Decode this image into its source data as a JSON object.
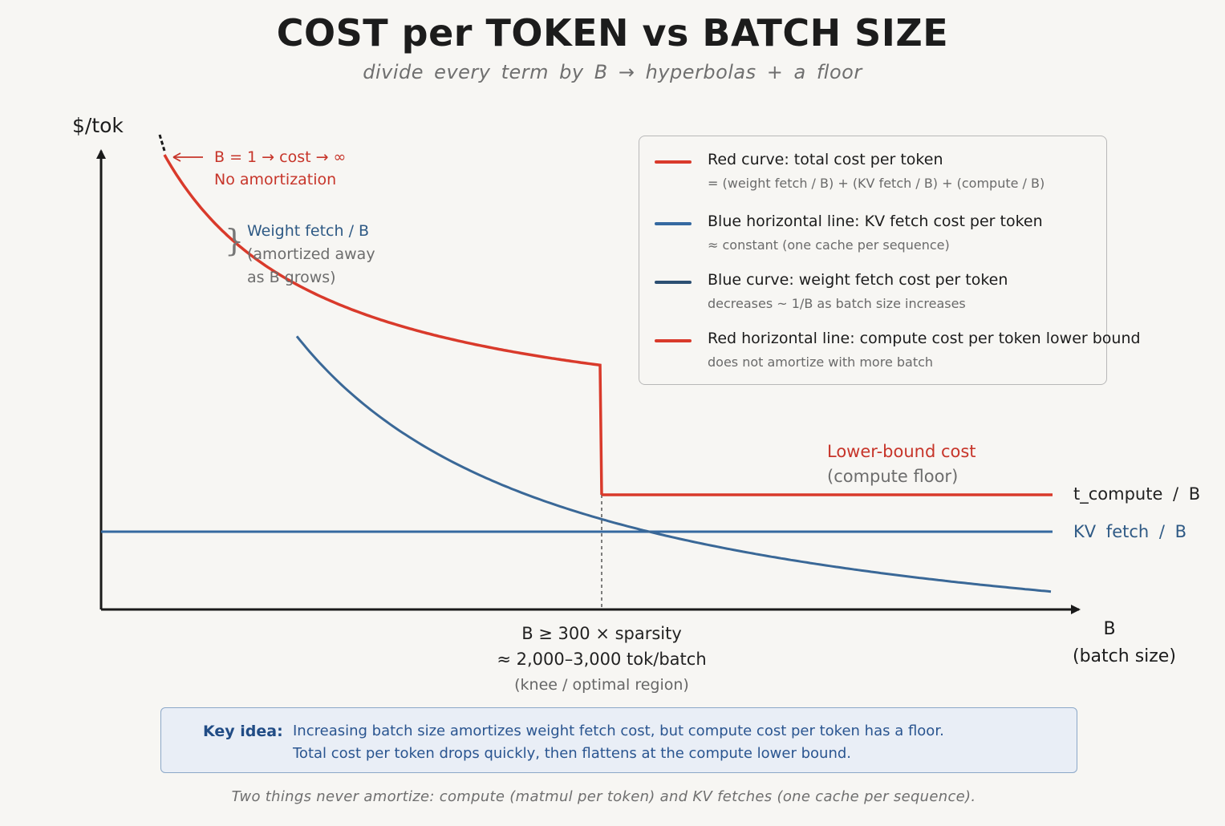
{
  "chart_data": {
    "type": "line",
    "title": "COST per TOKEN vs BATCH SIZE",
    "subtitle": "divide every term by B → hyperbolas + a floor",
    "ylabel": "$/tok",
    "xlabel_line1": "B",
    "xlabel_line2": "(batch size)",
    "series": [
      {
        "name": "Red curve: total cost per token",
        "color": "#d93a2b",
        "shape": "hyperbola then flat at knee"
      },
      {
        "name": "Blue horizontal line: KV fetch cost per token",
        "color": "#3569a0",
        "shape": "constant"
      },
      {
        "name": "Blue curve: weight fetch cost per token",
        "color": "#2f5a85",
        "shape": "decreasing ~1/B"
      },
      {
        "name": "Red horizontal line: compute cost per token lower bound",
        "color": "#d93a2b",
        "shape": "constant floor"
      }
    ],
    "grid": false,
    "legend_position": "top-right"
  },
  "annotations": {
    "b1_line1": "B = 1 → cost → ∞",
    "b1_line2": "No amortization",
    "weight_line1": "Weight fetch / B",
    "weight_line2": "(amortized away",
    "weight_line3": "as B grows)",
    "lower_bound_line1": "Lower-bound cost",
    "lower_bound_line2": "(compute floor)",
    "t_compute": "t_compute / B",
    "kv_fetch": "KV fetch / B",
    "knee_line1": "B ≥ 300 × sparsity",
    "knee_line2": "≈ 2,000–3,000 tok/batch",
    "knee_line3": "(knee / optimal region)"
  },
  "legend": [
    {
      "title": "Red curve: total cost per token",
      "desc": "= (weight fetch / B) + (KV fetch / B) + (compute / B)",
      "color": "#d93a2b"
    },
    {
      "title": "Blue horizontal line: KV fetch cost per token",
      "desc": "≈ constant (one cache per sequence)",
      "color": "#3569a0"
    },
    {
      "title": "Blue curve: weight fetch cost per token",
      "desc": "decreases ~ 1/B as batch size increases",
      "color": "#2c4f72"
    },
    {
      "title": "Red horizontal line: compute cost per token lower bound",
      "desc": "does not amortize with more batch",
      "color": "#d93a2b"
    }
  ],
  "key_idea": {
    "label": "Key idea:",
    "line1": "Increasing batch size amortizes weight fetch cost, but compute cost per token has a floor.",
    "line2": "Total cost per token drops quickly, then flattens at the compute lower bound."
  },
  "footnote": "Two things never amortize: compute (matmul per token) and KV fetches (one cache per sequence)."
}
